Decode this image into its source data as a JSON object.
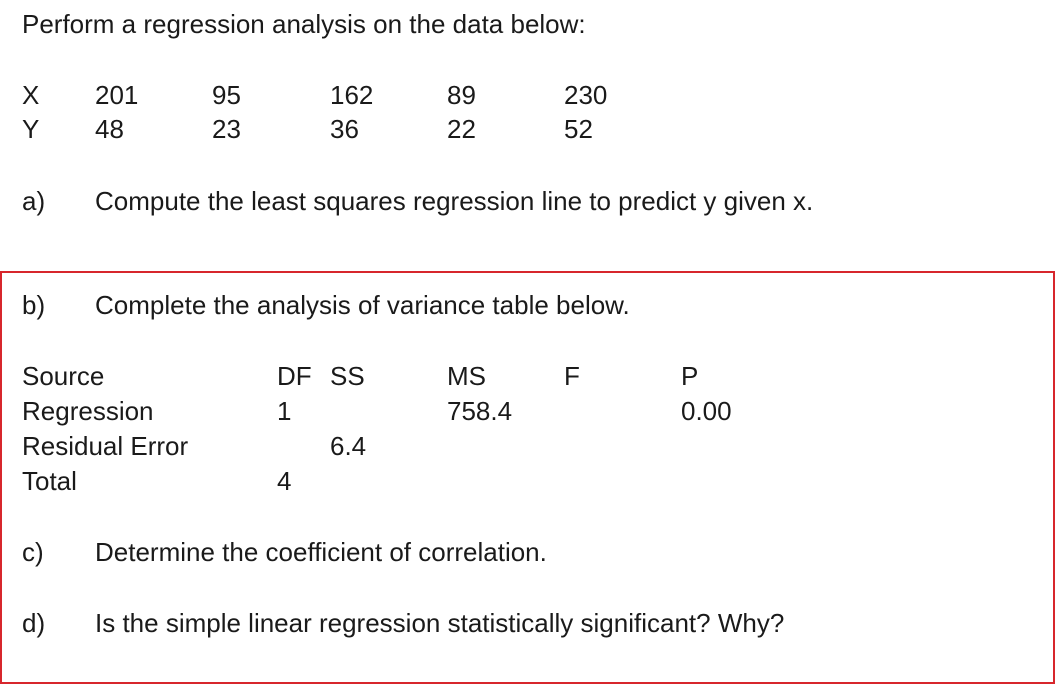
{
  "header": {
    "title": "Perform a regression analysis on the data below:"
  },
  "data": {
    "rows": [
      {
        "label": "X",
        "values": [
          201,
          95,
          162,
          89,
          230
        ]
      },
      {
        "label": "Y",
        "values": [
          48,
          23,
          36,
          22,
          52
        ]
      }
    ]
  },
  "questions": [
    {
      "label": "a)",
      "text": "Compute the least squares regression line to predict y given x."
    },
    {
      "label": "b)",
      "text": "Complete the analysis of variance table below."
    },
    {
      "label": "c)",
      "text": "Determine the coefficient of correlation."
    },
    {
      "label": "d)",
      "text": "Is the simple linear regression statistically significant?  Why?"
    }
  ],
  "table": {
    "headers": {
      "source": "Source",
      "df": "DF",
      "ss": "SS",
      "ms": "MS",
      "f": "F",
      "p": "P"
    },
    "rows": [
      {
        "source": "Regression",
        "df": 1,
        "ms": 758.4,
        "p": "0.00"
      },
      {
        "source": "Residual Error",
        "ss": 6.4
      },
      {
        "source": "Total",
        "df": 4
      }
    ]
  }
}
